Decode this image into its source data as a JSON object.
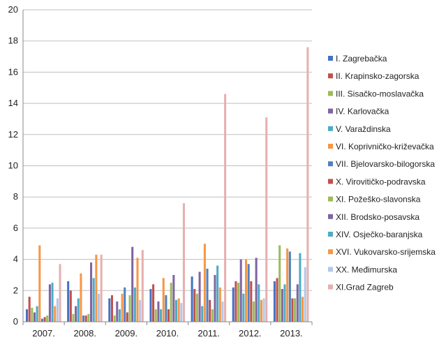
{
  "chart_data": {
    "type": "bar",
    "title": "",
    "xlabel": "",
    "ylabel": "",
    "ylim": [
      0,
      20
    ],
    "ytick_step": 2,
    "grid": "horizontal",
    "legend_position": "right",
    "categories": [
      "2007.",
      "2008.",
      "2009.",
      "2010.",
      "2011.",
      "2012.",
      "2013."
    ],
    "series": [
      {
        "name": "I. Zagrebačka",
        "color": "#4472C4",
        "values": [
          0.8,
          2.6,
          1.5,
          2.1,
          2.9,
          2.2,
          2.6
        ]
      },
      {
        "name": "II. Krapinsko-zagorska",
        "color": "#C0504D",
        "values": [
          1.6,
          2.0,
          1.7,
          2.4,
          2.1,
          2.6,
          2.8
        ]
      },
      {
        "name": "III. Sisačko-moslavačka",
        "color": "#9BBB59",
        "values": [
          0.9,
          0.5,
          0.4,
          0.8,
          1.8,
          2.5,
          4.9
        ]
      },
      {
        "name": "IV. Karlovačka",
        "color": "#8064A2",
        "values": [
          0.6,
          1.0,
          1.3,
          1.3,
          3.2,
          4.0,
          2.1
        ]
      },
      {
        "name": "V. Varaždinska",
        "color": "#4BACC6",
        "values": [
          1.0,
          1.5,
          0.8,
          0.8,
          1.0,
          1.8,
          2.4
        ]
      },
      {
        "name": "VI. Koprivničko-križevačka",
        "color": "#F79646",
        "values": [
          4.9,
          3.1,
          1.8,
          2.8,
          5.0,
          4.0,
          4.7
        ]
      },
      {
        "name": "VII. Bjelovarsko-bilogorska",
        "color": "#4F81BD",
        "values": [
          0.2,
          0.4,
          2.2,
          1.7,
          3.4,
          3.7,
          4.5
        ]
      },
      {
        "name": "X. Virovitičko-podravska",
        "color": "#C0504D",
        "values": [
          0.3,
          0.4,
          0.6,
          0.8,
          1.4,
          2.6,
          1.5
        ]
      },
      {
        "name": "XI. Požeško-slavonska",
        "color": "#9BBB59",
        "values": [
          0.4,
          0.5,
          1.7,
          2.5,
          0.8,
          1.3,
          1.5
        ]
      },
      {
        "name": "XII. Brodsko-posavska",
        "color": "#8064A2",
        "values": [
          2.4,
          3.8,
          4.8,
          3.0,
          3.0,
          4.1,
          2.4
        ]
      },
      {
        "name": "XIV. Osječko-baranjska",
        "color": "#4BACC6",
        "values": [
          2.5,
          2.8,
          2.2,
          1.4,
          3.6,
          2.4,
          4.4
        ]
      },
      {
        "name": "XVI. Vukovarsko-srijemska",
        "color": "#F79646",
        "values": [
          1.0,
          4.3,
          4.1,
          1.5,
          2.2,
          1.4,
          1.6
        ]
      },
      {
        "name": "XX. Međimurska",
        "color": "#B4C7E7",
        "values": [
          1.5,
          1.8,
          1.4,
          1.2,
          1.3,
          1.5,
          3.5
        ]
      },
      {
        "name": "XI.Grad Zagreb",
        "color": "#E6B0B0",
        "values": [
          3.7,
          4.3,
          4.6,
          7.6,
          14.6,
          13.1,
          17.6
        ]
      }
    ]
  }
}
